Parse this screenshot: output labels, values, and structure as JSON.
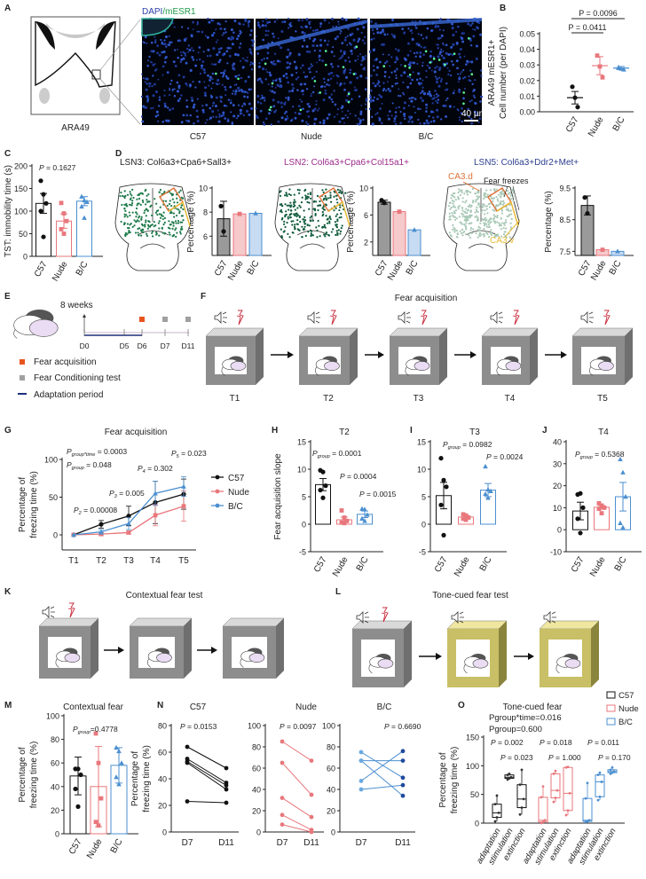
{
  "panel_labels": {
    "A": "A",
    "B": "B",
    "C": "C",
    "D": "D",
    "E": "E",
    "F": "F",
    "G": "G",
    "H": "H",
    "I": "I",
    "J": "J",
    "K": "K",
    "L": "L",
    "M": "M",
    "N": "N",
    "O": "O"
  },
  "colors": {
    "C57": "#111111",
    "Nude": "#e8777c",
    "B/C": "#4b8fd0",
    "fear_acquisition": "#e8531f",
    "conditioning_test": "#a0a0a0",
    "adaptation": "#1f2f7a",
    "LSN3": "#222222",
    "LSN2": "#9b2a8a",
    "LSN5": "#2d3e8f",
    "CA3d": "#e0733a",
    "CA3v": "#e8b830",
    "chamber_gray": "#8c8c8c",
    "chamber_yellow": "#c9c06a"
  },
  "A": {
    "stain_dapi": "DAPI",
    "stain_mesr1": "/mESR1",
    "atlas_label": "ARA49",
    "image_labels": [
      "C57",
      "Nude",
      "B/C"
    ],
    "scale_bar": "40 µm"
  },
  "D": {
    "annotations": {
      "ca3d": "CA3.d",
      "fear_freezes": "Fear freezes",
      "ca3v": "CA3.v"
    }
  },
  "E": {
    "age": "8 weeks",
    "days": [
      "D0",
      "D5",
      "D6",
      "D7",
      "D11"
    ],
    "legend": [
      "Fear acquisition",
      "Fear Conditioning test",
      "Adaptation period"
    ]
  },
  "F": {
    "title": "Fear acquisition",
    "trials": [
      "T1",
      "T2",
      "T3",
      "T4",
      "T5"
    ]
  },
  "K": {
    "title": "Contextual fear test"
  },
  "L": {
    "title": "Tone-cued fear test"
  },
  "chart_data": [
    {
      "id": "B",
      "type": "scatter",
      "categories": [
        "C57",
        "Nude",
        "B/C"
      ],
      "ylabel": [
        "ARA49 mESR1+",
        "Cell number (per DAPI)"
      ],
      "ylim": [
        0,
        0.05
      ],
      "yticks": [
        "0.00",
        "0.01",
        "0.02",
        "0.03",
        "0.04",
        "0.05"
      ],
      "groups": [
        {
          "points": [
            0.016,
            0.009,
            0.003
          ],
          "mean": 0.009,
          "err": 0.004
        },
        {
          "points": [
            0.036,
            0.029,
            0.022
          ],
          "mean": 0.0295,
          "err": 0.0058
        },
        {
          "points": [
            0.0285,
            0.0275,
            0.027,
            0.028
          ],
          "mean": 0.028,
          "err": 0.001
        }
      ],
      "brackets": [
        {
          "from": 0,
          "to": 2,
          "label": "P = 0.0096"
        },
        {
          "from": 0,
          "to": 1,
          "label": "P = 0.0411"
        }
      ]
    },
    {
      "id": "C",
      "type": "bar",
      "categories": [
        "C57",
        "Nude",
        "B/C"
      ],
      "ylabel": [
        "TST: immobility time (s)"
      ],
      "ylim": [
        0,
        200
      ],
      "yticks": [
        "0",
        "50",
        "100",
        "150",
        "200"
      ],
      "groups": [
        {
          "points": [
            167,
            137,
            117,
            100,
            43
          ],
          "mean": 117,
          "err": 22
        },
        {
          "points": [
            118,
            95,
            78,
            60,
            50
          ],
          "mean": 78,
          "err": 16
        },
        {
          "points": [
            132,
            124,
            120,
            110,
            85
          ],
          "mean": 122,
          "err": 10
        }
      ],
      "annotations": [
        {
          "main": "P",
          "sub": "",
          "rest": " = 0.1627"
        }
      ]
    },
    {
      "id": "D-LSN3",
      "type": "bar",
      "title": "LSN3: Col6a3+Cpa6+Sall3+",
      "categories": [
        "C57",
        "Nude",
        "B/C"
      ],
      "ylabel": [
        "Percentage (%)"
      ],
      "ylim": [
        4.4,
        10
      ],
      "yticks": [
        "6",
        "8",
        "10"
      ],
      "groups": [
        {
          "points": [
            8.5,
            6.4
          ],
          "mean": 7.45,
          "err": 1.45
        },
        {
          "points": [
            7.85
          ],
          "mean": 7.85,
          "err": 0
        },
        {
          "points": [
            7.9
          ],
          "mean": 7.9,
          "err": 0
        }
      ]
    },
    {
      "id": "D-LSN2",
      "type": "bar",
      "title": "LSN2: Col6a3+Cpa6+Col15a1+",
      "categories": [
        "C57",
        "Nude",
        "B/C"
      ],
      "ylabel": [
        "Percentage (%)"
      ],
      "ylim": [
        0,
        10
      ],
      "yticks": [
        "2",
        "6",
        "10"
      ],
      "groups": [
        {
          "points": [
            8.2,
            7.8
          ],
          "mean": 7.9,
          "err": 0.3
        },
        {
          "points": [
            6.5
          ],
          "mean": 6.5,
          "err": 0
        },
        {
          "points": [
            3.8
          ],
          "mean": 3.8,
          "err": 0
        }
      ]
    },
    {
      "id": "D-LSN5",
      "type": "bar",
      "title": "LSN5: Col6a3+Ddr2+Met+",
      "categories": [
        "C57",
        "Nude",
        "B/C"
      ],
      "ylabel": [
        "Percentage (%)"
      ],
      "ylim": [
        7.37,
        9.5
      ],
      "yticks": [
        "7.5",
        "8.5",
        "9.5"
      ],
      "groups": [
        {
          "points": [
            9.2,
            8.7
          ],
          "mean": 8.95,
          "err": 0.3
        },
        {
          "points": [
            7.55
          ],
          "mean": 7.55,
          "err": 0
        },
        {
          "points": [
            7.5
          ],
          "mean": 7.5,
          "err": 0
        }
      ]
    },
    {
      "id": "G",
      "type": "line",
      "title": "Fear acquisition",
      "x": [
        "T1",
        "T2",
        "T3",
        "T4",
        "T5"
      ],
      "ylabel": [
        "Percentage of",
        "freezing time (%)"
      ],
      "ylim": [
        -20,
        100
      ],
      "yticks": [
        "0",
        "50",
        "100"
      ],
      "legend": "right",
      "series": [
        {
          "name": "C57",
          "values": [
            0,
            14,
            25,
            43,
            54
          ],
          "err": [
            0,
            5,
            13,
            28,
            20
          ]
        },
        {
          "name": "Nude",
          "values": [
            0,
            1,
            3,
            26,
            38
          ],
          "err": [
            0,
            2,
            2,
            14,
            20
          ]
        },
        {
          "name": "B/C",
          "values": [
            0,
            4,
            15,
            55,
            64
          ],
          "err": [
            0,
            3,
            8,
            16,
            13
          ]
        }
      ],
      "annotations": [
        {
          "main": "P",
          "sub": "group*time",
          "rest": " = 0.0003"
        },
        {
          "main": "P",
          "sub": "group",
          "rest": " = 0.048"
        },
        {
          "main": "P",
          "sub": "2",
          "rest": " = 0.00008"
        },
        {
          "main": "P",
          "sub": "3",
          "rest": " = 0.005"
        },
        {
          "main": "P",
          "sub": "4",
          "rest": " = 0.302"
        },
        {
          "main": "P",
          "sub": "5",
          "rest": " = 0.023"
        }
      ]
    },
    {
      "id": "H",
      "type": "bar",
      "title": "T2",
      "categories": [
        "C57",
        "Nude",
        "B/C"
      ],
      "ylabel": [
        "Fear acquisition slope"
      ],
      "ylim": [
        -5,
        15
      ],
      "yticks": [
        "-5",
        "0",
        "5",
        "10",
        "15"
      ],
      "groups": [
        {
          "points": [
            9.8,
            9.5,
            7,
            6.2,
            4.8
          ],
          "mean": 7.2,
          "err": 1.1
        },
        {
          "points": [
            2.5,
            1.2,
            0.6,
            0.3,
            0.2
          ],
          "mean": 0.8,
          "err": 0.5
        },
        {
          "points": [
            2.8,
            2.7,
            1.7,
            1.0,
            0.6
          ],
          "mean": 1.8,
          "err": 0.6
        }
      ],
      "annotations": [
        {
          "main": "P",
          "sub": "group",
          "rest": " = 0.0001"
        },
        {
          "main": "P",
          "sub": "",
          "rest": " = 0.0004"
        },
        {
          "main": "P",
          "sub": "",
          "rest": " = 0.0015"
        }
      ]
    },
    {
      "id": "I",
      "type": "bar",
      "title": "T3",
      "categories": [
        "C57",
        "Nude",
        "B/C"
      ],
      "ylabel": [],
      "ylim": [
        -5,
        15
      ],
      "yticks": [
        "-5",
        "0",
        "5",
        "10",
        "15"
      ],
      "groups": [
        {
          "points": [
            12,
            8,
            6.8,
            3.5,
            -2
          ],
          "mean": 5.2,
          "err": 2.4
        },
        {
          "points": [
            1.8,
            1.6,
            1.2,
            1.0,
            0.8
          ],
          "mean": 1.3,
          "err": 0.3
        },
        {
          "points": [
            10.5,
            6.3,
            6.0,
            5.5,
            4.8
          ],
          "mean": 6.2,
          "err": 1.2
        }
      ],
      "annotations": [
        {
          "main": "P",
          "sub": "group",
          "rest": " = 0.0982"
        },
        {
          "main": "P",
          "sub": "",
          "rest": " = 0.0024"
        }
      ]
    },
    {
      "id": "J",
      "type": "bar",
      "title": "T4",
      "categories": [
        "C57",
        "Nude",
        "B/C"
      ],
      "ylabel": [],
      "ylim": [
        -10,
        40
      ],
      "yticks": [
        "-10",
        "0",
        "10",
        "20",
        "30",
        "40"
      ],
      "groups": [
        {
          "points": [
            16,
            16.5,
            10,
            5,
            -1.5
          ],
          "mean": 8.5,
          "err": 4
        },
        {
          "points": [
            12,
            11,
            10,
            9.5,
            7.5
          ],
          "mean": 10.2,
          "err": 0.8
        },
        {
          "points": [
            32,
            26,
            15,
            3,
            1
          ],
          "mean": 15,
          "err": 6.5
        }
      ],
      "annotations": [
        {
          "main": "P",
          "sub": "group",
          "rest": " = 0.5368"
        }
      ]
    },
    {
      "id": "M",
      "type": "bar",
      "title": "Contextual fear",
      "categories": [
        "C57",
        "Nude",
        "B/C"
      ],
      "ylabel": [
        "Percentage of",
        "freezing time (%)"
      ],
      "ylim": [
        0,
        100
      ],
      "yticks": [
        "0",
        "20",
        "40",
        "60",
        "80",
        "100"
      ],
      "groups": [
        {
          "points": [
            55,
            55,
            50,
            38,
            23
          ],
          "mean": 49,
          "err": 16
        },
        {
          "points": [
            85,
            60,
            30,
            10,
            7
          ],
          "mean": 40,
          "err": 34
        },
        {
          "points": [
            73,
            70,
            60,
            48,
            42
          ],
          "mean": 58,
          "err": 15
        }
      ],
      "annotations": [
        {
          "main": "P",
          "sub": "group",
          "rest": "=0.4778"
        }
      ]
    },
    {
      "id": "N-C57",
      "type": "line",
      "subtype": "paired",
      "title": "C57",
      "x": [
        "D7",
        "D11"
      ],
      "ylabel": [
        "Percentage of",
        "freezing time (%)"
      ],
      "ylim": [
        0,
        80
      ],
      "yticks": [
        "0",
        "20",
        "40",
        "60",
        "80"
      ],
      "pairs": [
        [
          64,
          48
        ],
        [
          55,
          37
        ],
        [
          53,
          35
        ],
        [
          52,
          32
        ],
        [
          23,
          22
        ]
      ],
      "annotations": [
        {
          "main": "P",
          "sub": "",
          "rest": " = 0.0153"
        }
      ]
    },
    {
      "id": "N-Nude",
      "type": "line",
      "subtype": "paired",
      "title": "Nude",
      "x": [
        "D7",
        "D11"
      ],
      "ylabel": [],
      "ylim": [
        0,
        100
      ],
      "yticks": [
        "0",
        "20",
        "40",
        "60",
        "80",
        "100"
      ],
      "pairs": [
        [
          85,
          67
        ],
        [
          65,
          35
        ],
        [
          32,
          14
        ],
        [
          16,
          2
        ],
        [
          7,
          0
        ]
      ],
      "annotations": [
        {
          "main": "P",
          "sub": "",
          "rest": " = 0.0097"
        }
      ]
    },
    {
      "id": "N-B/C",
      "type": "line",
      "subtype": "paired",
      "title": "B/C",
      "x": [
        "D7",
        "D11"
      ],
      "ylabel": [],
      "ylim": [
        0,
        100
      ],
      "yticks": [
        "0",
        "20",
        "40",
        "60",
        "80",
        "100"
      ],
      "pairs": [
        [
          75,
          51
        ],
        [
          67,
          34
        ],
        [
          48,
          76
        ],
        [
          40,
          44
        ],
        [
          67,
          67
        ]
      ],
      "annotations": [
        {
          "main": "P",
          "sub": "",
          "rest": " = 0.6690"
        }
      ]
    },
    {
      "id": "O",
      "type": "box",
      "title": "Tone-cued fear",
      "categories": [
        "adaptation",
        "stimulation",
        "extinction",
        "adaptation",
        "stimulation",
        "extinction",
        "adaptation",
        "stimulation",
        "extinction"
      ],
      "group_of_box": [
        "C57",
        "C57",
        "C57",
        "Nude",
        "Nude",
        "Nude",
        "B/C",
        "B/C",
        "B/C"
      ],
      "ylabel": [
        "Percentage of",
        "freezing time (%)"
      ],
      "ylim": [
        0,
        150
      ],
      "yticks": [
        "0",
        "50",
        "100",
        "150"
      ],
      "legend": "top-right",
      "legend_entries": [
        "C57",
        "Nude",
        "B/C"
      ],
      "boxes": [
        [
          3,
          10,
          18,
          33,
          48
        ],
        [
          76,
          78,
          80,
          84,
          86
        ],
        [
          15,
          27,
          42,
          67,
          93
        ],
        [
          0,
          2,
          5,
          45,
          64
        ],
        [
          37,
          44,
          57,
          86,
          91
        ],
        [
          14,
          22,
          52,
          97,
          98
        ],
        [
          2,
          3,
          5,
          43,
          70
        ],
        [
          40,
          46,
          72,
          84,
          88
        ],
        [
          86,
          88,
          90,
          93,
          97
        ]
      ],
      "annotations": [
        {
          "main": "Pgroup*time=0.016",
          "sub": "",
          "rest": ""
        },
        {
          "main": "Pgroup=0.600",
          "sub": "",
          "rest": ""
        },
        {
          "main": "P",
          "sub": "",
          "rest": " = 0.002"
        },
        {
          "main": "P",
          "sub": "",
          "rest": " = 0.018"
        },
        {
          "main": "P",
          "sub": "",
          "rest": " = 0.011"
        },
        {
          "main": "P",
          "sub": "",
          "rest": " = 0.023"
        },
        {
          "main": "P",
          "sub": "",
          "rest": " = 1.000"
        },
        {
          "main": "P",
          "sub": "",
          "rest": " = 0.170"
        }
      ]
    }
  ]
}
